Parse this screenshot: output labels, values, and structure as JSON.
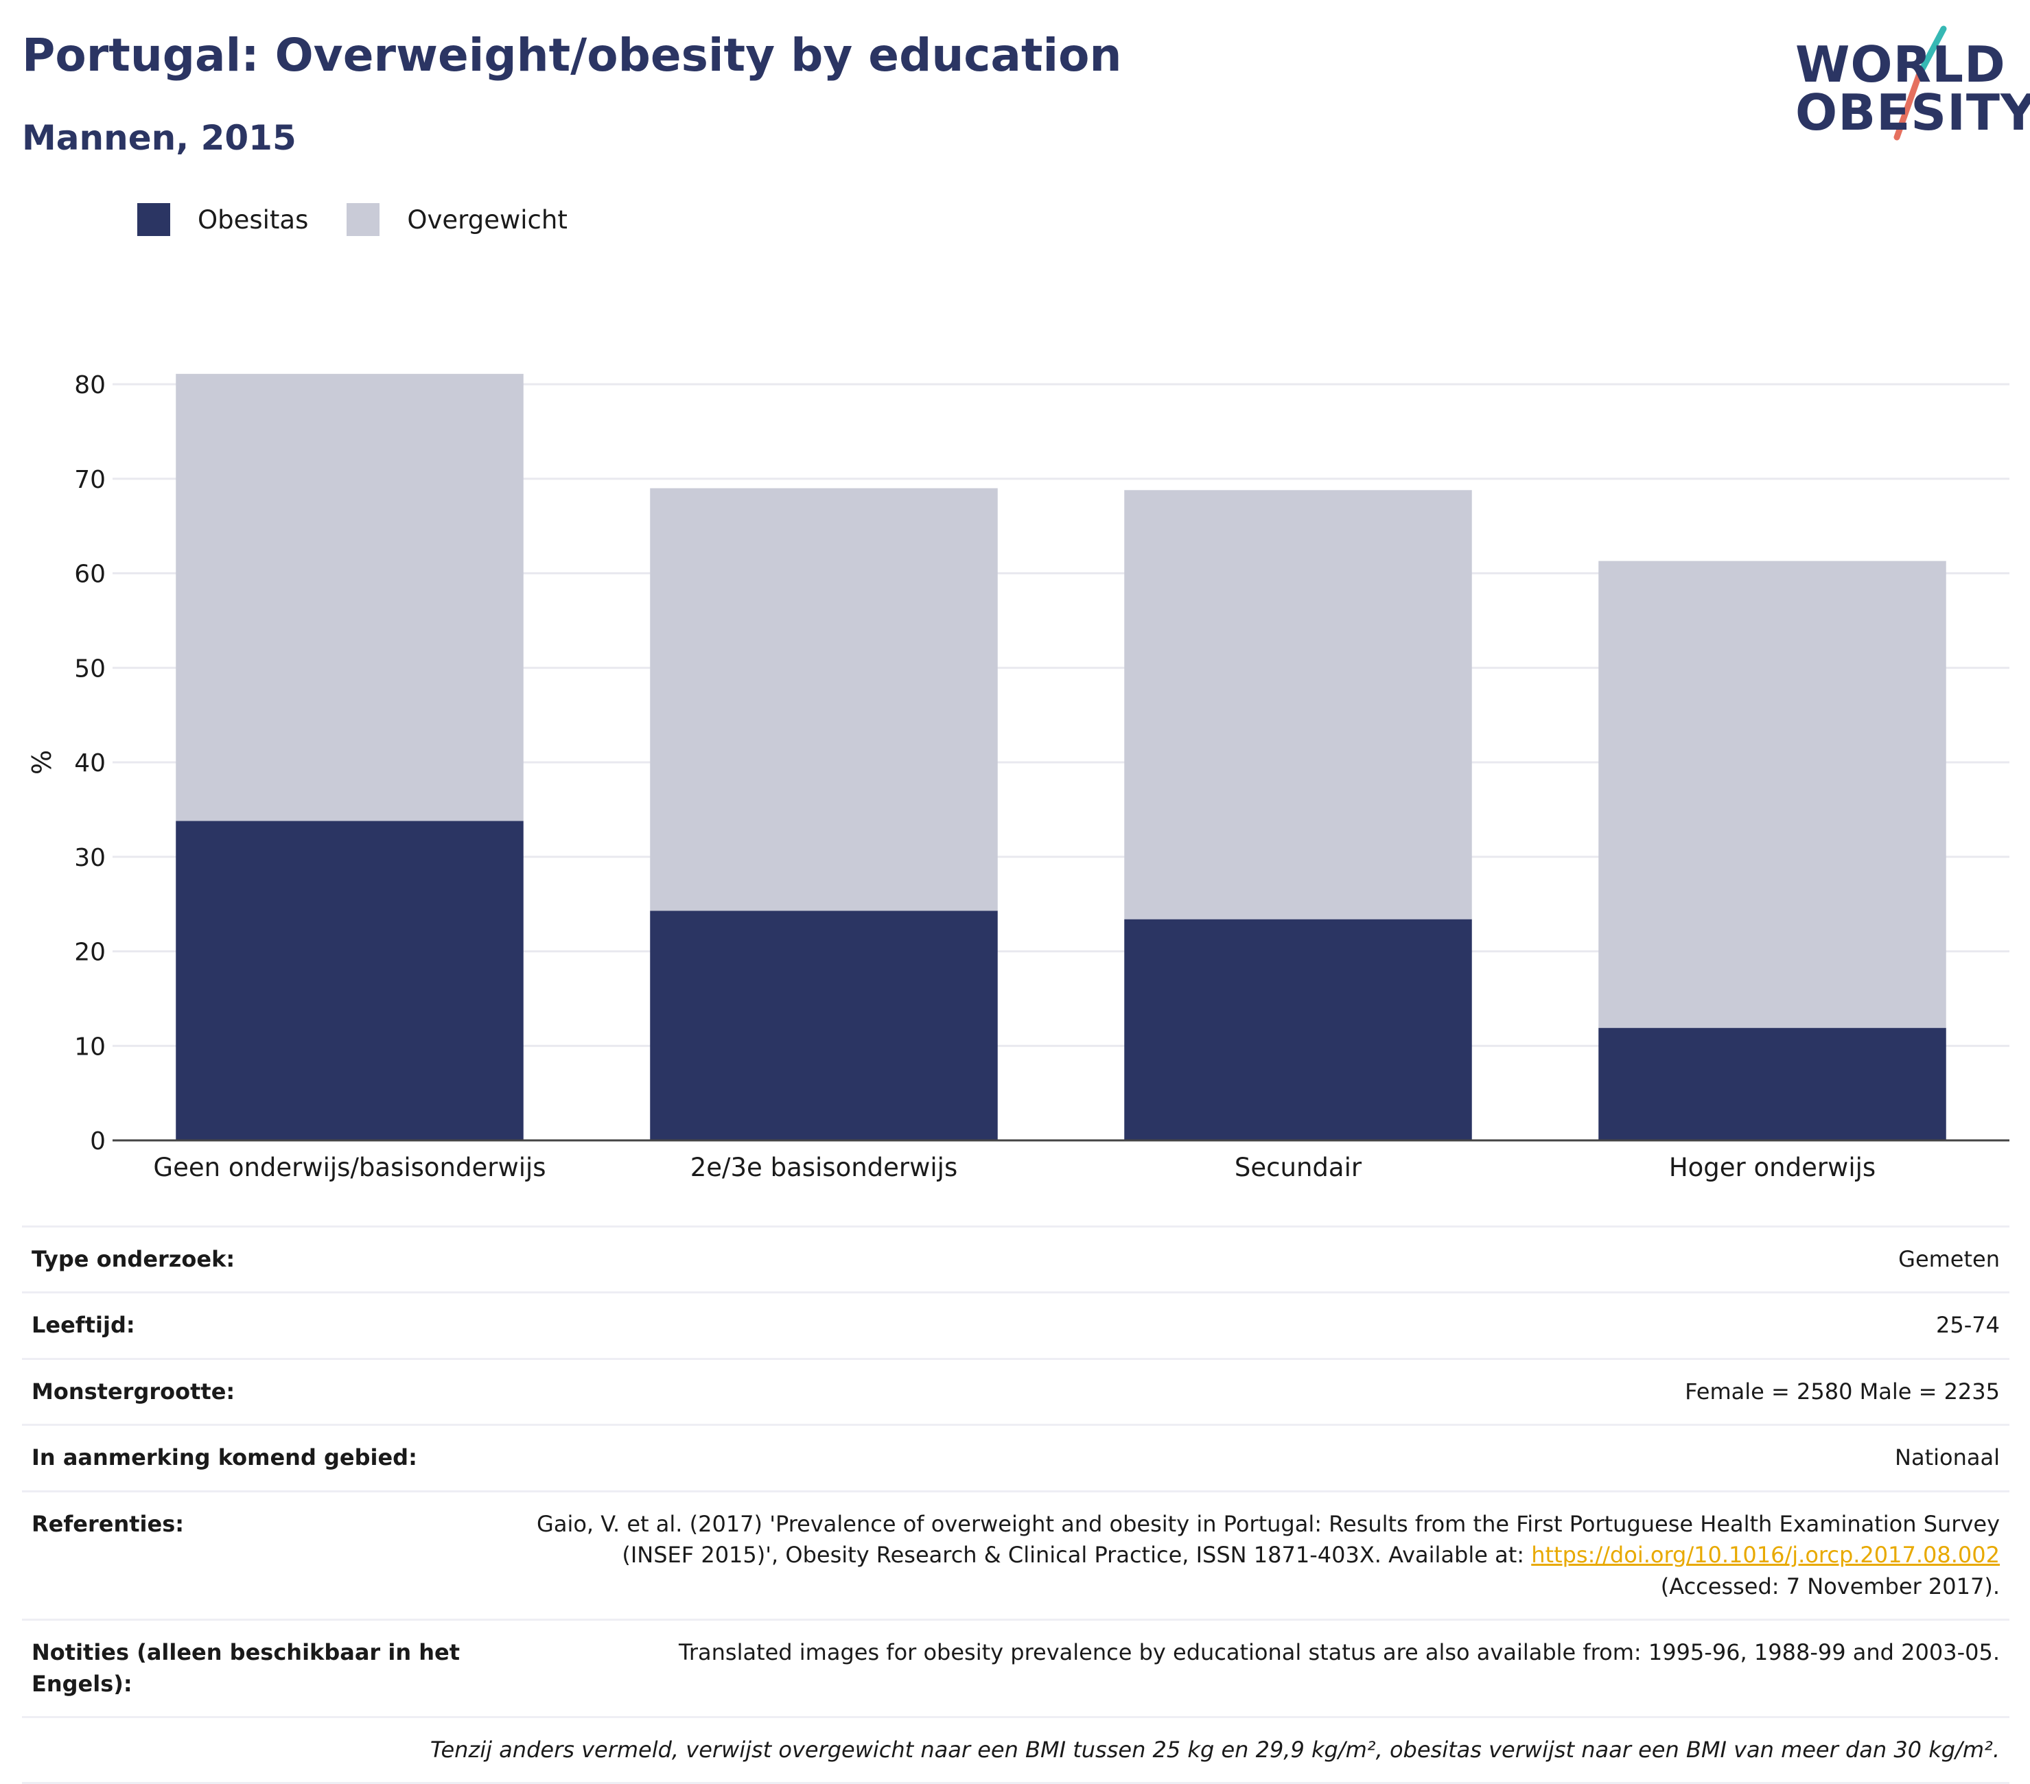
{
  "header": {
    "title": "Portugal: Overweight/obesity by education",
    "subtitle": "Mannen, 2015",
    "logo_line1": "WORLD",
    "logo_line2": "OBESITY"
  },
  "colors": {
    "obesitas": "#2b3563",
    "overgewicht": "#c9cbd7",
    "title": "#2b3563",
    "link": "#e8a900",
    "logo_accent_teal": "#36b8b4",
    "logo_accent_coral": "#e5705f"
  },
  "chart_data": {
    "type": "bar",
    "stacked": true,
    "categories": [
      "Geen onderwijs/basisonderwijs",
      "2e/3e basisonderwijs",
      "Secundair",
      "Hoger onderwijs"
    ],
    "series": [
      {
        "name": "Obesitas",
        "values": [
          33.8,
          24.3,
          23.4,
          11.9
        ]
      },
      {
        "name": "Overgewicht",
        "values": [
          47.3,
          44.7,
          45.4,
          49.4
        ]
      }
    ],
    "ylabel": "%",
    "xlabel": "",
    "ylim": [
      0,
      80
    ],
    "yticks": [
      "0",
      "10",
      "20",
      "30",
      "40",
      "50",
      "60",
      "70",
      "80"
    ],
    "grid": true,
    "legend_position": "top-left"
  },
  "info": {
    "rows": [
      {
        "label": "Type onderzoek:",
        "value": "Gemeten"
      },
      {
        "label": "Leeftijd:",
        "value": "25-74"
      },
      {
        "label": "Monstergrootte:",
        "value": "Female = 2580 Male = 2235"
      },
      {
        "label": "In aanmerking komend gebied:",
        "value": "Nationaal"
      }
    ],
    "references": {
      "label": "Referenties:",
      "line1": "Gaio, V. et al. (2017) 'Prevalence of overweight and obesity in Portugal: Results from the First Portuguese Health Examination Survey",
      "line2_text": "(INSEF 2015)', Obesity Research & Clinical Practice, ISSN 1871-403X. Available at: ",
      "line2_link": "https://doi.org/10.1016/j.orcp.2017.08.002",
      "line3": "(Accessed: 7 November 2017)."
    },
    "notes": {
      "label": "Notities (alleen beschikbaar in het Engels):",
      "value": "Translated images for obesity prevalence by educational status are also available from: 1995-96, 1988-99 and 2003-05."
    },
    "footnote": "Tenzij anders vermeld, verwijst overgewicht naar een BMI tussen 25 kg en 29,9 kg/m², obesitas verwijst naar een BMI van meer dan 30 kg/m²."
  }
}
